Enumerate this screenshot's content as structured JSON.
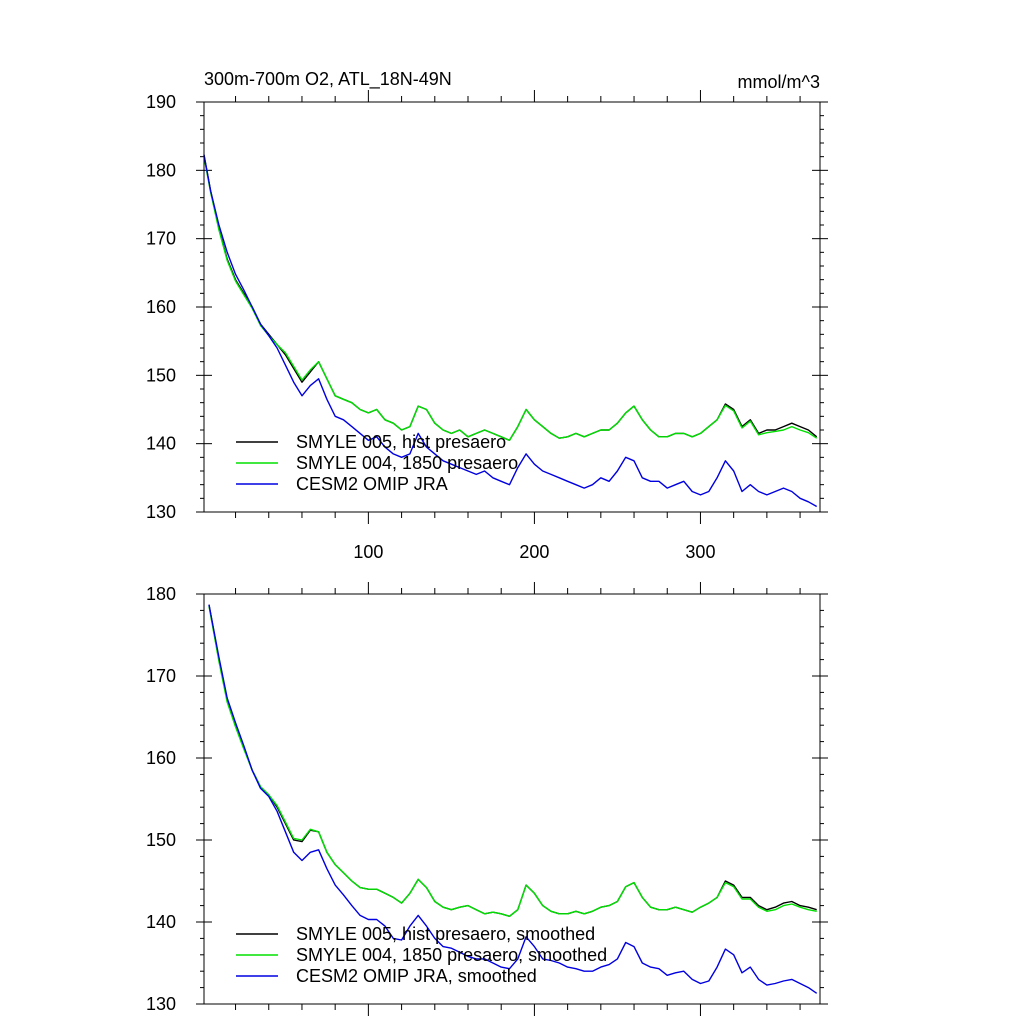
{
  "chart_data": [
    {
      "type": "line",
      "title": "300m-700m O2, ATL_18N-49N",
      "units": "mmol/m^3",
      "xlim": [
        1,
        372
      ],
      "ylim": [
        130,
        190
      ],
      "xticks": [
        100,
        200,
        300
      ],
      "xtick_labels": [
        "100",
        "200",
        "300"
      ],
      "yticks": [
        130,
        140,
        150,
        160,
        170,
        180,
        190
      ],
      "ytick_labels": [
        "130",
        "140",
        "150",
        "160",
        "170",
        "180",
        "190"
      ],
      "legend_position": "bottom-left",
      "series": [
        {
          "name": "SMYLE 005, hist presaero",
          "color": "#000000",
          "x": [
            1,
            5,
            10,
            15,
            20,
            25,
            30,
            35,
            40,
            45,
            50,
            55,
            60,
            65,
            70,
            75,
            80,
            85,
            90,
            95,
            100,
            105,
            110,
            115,
            120,
            125,
            130,
            135,
            140,
            145,
            150,
            155,
            160,
            165,
            170,
            175,
            180,
            185,
            190,
            195,
            200,
            205,
            210,
            215,
            220,
            225,
            230,
            235,
            240,
            245,
            250,
            255,
            260,
            265,
            270,
            275,
            280,
            285,
            290,
            295,
            300,
            305,
            310,
            315,
            320,
            325,
            330,
            335,
            340,
            345,
            350,
            355,
            360,
            365,
            370
          ],
          "values": [
            182.2,
            177.0,
            171.5,
            167.0,
            164.0,
            162.0,
            160.0,
            157.5,
            156.0,
            154.5,
            153.0,
            151.0,
            149.0,
            150.5,
            152.0,
            149.5,
            147.0,
            146.5,
            146.0,
            145.0,
            144.5,
            145.0,
            143.5,
            143.0,
            142.0,
            142.5,
            145.5,
            145.0,
            143.0,
            142.0,
            141.5,
            142.0,
            141.0,
            141.5,
            142.0,
            141.5,
            141.0,
            140.5,
            142.5,
            145.0,
            143.5,
            142.5,
            141.5,
            140.8,
            141.0,
            141.5,
            141.0,
            141.5,
            142.0,
            142.0,
            143.0,
            144.5,
            145.5,
            143.5,
            142.0,
            141.0,
            141.0,
            141.5,
            141.5,
            141.0,
            141.5,
            142.5,
            143.5,
            145.8,
            145.0,
            142.5,
            143.5,
            141.5,
            142.0,
            142.0,
            142.5,
            143.0,
            142.5,
            142.0,
            141.0
          ]
        },
        {
          "name": "SMYLE 004, 1850 presaero",
          "color": "#00e000",
          "x": [
            1,
            5,
            10,
            15,
            20,
            25,
            30,
            35,
            40,
            45,
            50,
            55,
            60,
            65,
            70,
            75,
            80,
            85,
            90,
            95,
            100,
            105,
            110,
            115,
            120,
            125,
            130,
            135,
            140,
            145,
            150,
            155,
            160,
            165,
            170,
            175,
            180,
            185,
            190,
            195,
            200,
            205,
            210,
            215,
            220,
            225,
            230,
            235,
            240,
            245,
            250,
            255,
            260,
            265,
            270,
            275,
            280,
            285,
            290,
            295,
            300,
            305,
            310,
            315,
            320,
            325,
            330,
            335,
            340,
            345,
            350,
            355,
            360,
            365,
            370
          ],
          "values": [
            182.0,
            176.8,
            171.3,
            166.8,
            163.8,
            161.8,
            159.8,
            157.3,
            155.8,
            154.5,
            153.3,
            151.3,
            149.3,
            150.8,
            152.0,
            149.5,
            147.0,
            146.5,
            146.0,
            145.0,
            144.5,
            145.0,
            143.5,
            143.0,
            142.0,
            142.5,
            145.5,
            145.0,
            143.0,
            142.0,
            141.5,
            142.0,
            141.0,
            141.5,
            142.0,
            141.5,
            141.0,
            140.5,
            142.5,
            145.0,
            143.5,
            142.5,
            141.5,
            140.8,
            141.0,
            141.5,
            141.0,
            141.5,
            142.0,
            142.0,
            143.0,
            144.5,
            145.5,
            143.5,
            142.0,
            141.0,
            141.0,
            141.5,
            141.5,
            141.0,
            141.5,
            142.5,
            143.5,
            145.6,
            144.8,
            142.3,
            143.3,
            141.3,
            141.6,
            141.8,
            142.0,
            142.5,
            142.0,
            141.6,
            140.8
          ]
        },
        {
          "name": "CESM2 OMIP JRA",
          "color": "#0000e0",
          "x": [
            1,
            5,
            10,
            15,
            20,
            25,
            30,
            35,
            40,
            45,
            50,
            55,
            60,
            65,
            70,
            75,
            80,
            85,
            90,
            95,
            100,
            105,
            110,
            115,
            120,
            125,
            130,
            135,
            140,
            145,
            150,
            155,
            160,
            165,
            170,
            175,
            180,
            185,
            190,
            195,
            200,
            205,
            210,
            215,
            220,
            225,
            230,
            235,
            240,
            245,
            250,
            255,
            260,
            265,
            270,
            275,
            280,
            285,
            290,
            295,
            300,
            305,
            310,
            315,
            320,
            325,
            330,
            335,
            340,
            345,
            350,
            355,
            360,
            365,
            370
          ],
          "values": [
            182.3,
            177.0,
            172.0,
            168.0,
            164.8,
            162.5,
            160.0,
            157.5,
            155.8,
            154.0,
            151.5,
            149.0,
            147.0,
            148.5,
            149.5,
            146.5,
            144.0,
            143.5,
            142.5,
            141.5,
            140.5,
            141.0,
            139.5,
            138.5,
            138.0,
            138.5,
            141.5,
            139.5,
            138.5,
            137.5,
            137.0,
            136.5,
            136.0,
            135.5,
            136.0,
            135.0,
            134.5,
            134.0,
            136.5,
            138.5,
            137.0,
            136.0,
            135.5,
            135.0,
            134.5,
            134.0,
            133.5,
            134.0,
            135.0,
            134.5,
            136.0,
            138.0,
            137.5,
            135.0,
            134.5,
            134.5,
            133.5,
            134.0,
            134.5,
            133.0,
            132.5,
            133.0,
            135.0,
            137.5,
            136.0,
            133.0,
            134.0,
            133.0,
            132.5,
            133.0,
            133.5,
            133.0,
            132.0,
            131.5,
            130.8
          ]
        }
      ]
    },
    {
      "type": "line",
      "title": "",
      "xlim": [
        1,
        372
      ],
      "ylim": [
        130,
        180
      ],
      "xticks": [
        100,
        200,
        300
      ],
      "yticks": [
        130,
        140,
        150,
        160,
        170,
        180
      ],
      "ytick_labels": [
        "130",
        "140",
        "150",
        "160",
        "170",
        "180"
      ],
      "legend_position": "bottom-left",
      "series": [
        {
          "name": "SMYLE 005, hist presaero, smoothed",
          "color": "#000000",
          "x": [
            4,
            10,
            15,
            20,
            25,
            30,
            35,
            40,
            45,
            50,
            55,
            60,
            65,
            70,
            75,
            80,
            85,
            90,
            95,
            100,
            105,
            110,
            115,
            120,
            125,
            130,
            135,
            140,
            145,
            150,
            155,
            160,
            165,
            170,
            175,
            180,
            185,
            190,
            195,
            200,
            205,
            210,
            215,
            220,
            225,
            230,
            235,
            240,
            245,
            250,
            255,
            260,
            265,
            270,
            275,
            280,
            285,
            290,
            295,
            300,
            305,
            310,
            315,
            320,
            325,
            330,
            335,
            340,
            345,
            350,
            355,
            360,
            365,
            370
          ],
          "values": [
            178.7,
            172.0,
            167.0,
            164.0,
            161.3,
            158.5,
            156.5,
            155.5,
            154.0,
            152.0,
            150.0,
            149.8,
            151.2,
            151.0,
            148.5,
            147.0,
            146.0,
            145.0,
            144.2,
            144.0,
            144.0,
            143.5,
            143.0,
            142.3,
            143.5,
            145.2,
            144.2,
            142.5,
            141.8,
            141.5,
            141.8,
            142.0,
            141.5,
            141.0,
            141.2,
            141.0,
            140.7,
            141.5,
            144.5,
            143.5,
            142.0,
            141.3,
            141.0,
            141.0,
            141.3,
            141.0,
            141.3,
            141.8,
            142.0,
            142.5,
            144.3,
            144.8,
            143.0,
            141.8,
            141.5,
            141.5,
            141.8,
            141.5,
            141.2,
            141.8,
            142.3,
            143.0,
            145.0,
            144.5,
            143.0,
            143.0,
            142.0,
            141.5,
            141.8,
            142.3,
            142.5,
            142.0,
            141.8,
            141.5
          ]
        },
        {
          "name": "SMYLE 004, 1850 presaero, smoothed",
          "color": "#00e000",
          "x": [
            4,
            10,
            15,
            20,
            25,
            30,
            35,
            40,
            45,
            50,
            55,
            60,
            65,
            70,
            75,
            80,
            85,
            90,
            95,
            100,
            105,
            110,
            115,
            120,
            125,
            130,
            135,
            140,
            145,
            150,
            155,
            160,
            165,
            170,
            175,
            180,
            185,
            190,
            195,
            200,
            205,
            210,
            215,
            220,
            225,
            230,
            235,
            240,
            245,
            250,
            255,
            260,
            265,
            270,
            275,
            280,
            285,
            290,
            295,
            300,
            305,
            310,
            315,
            320,
            325,
            330,
            335,
            340,
            345,
            350,
            355,
            360,
            365,
            370
          ],
          "values": [
            178.5,
            171.8,
            166.8,
            163.8,
            161.1,
            158.5,
            156.5,
            155.5,
            154.2,
            152.2,
            150.2,
            150.0,
            151.3,
            151.0,
            148.5,
            147.0,
            146.0,
            145.0,
            144.2,
            144.0,
            144.0,
            143.5,
            143.0,
            142.3,
            143.5,
            145.2,
            144.2,
            142.5,
            141.8,
            141.5,
            141.8,
            142.0,
            141.5,
            141.0,
            141.2,
            141.0,
            140.7,
            141.5,
            144.5,
            143.5,
            142.0,
            141.3,
            141.0,
            141.0,
            141.3,
            141.0,
            141.3,
            141.8,
            142.0,
            142.5,
            144.3,
            144.8,
            143.0,
            141.8,
            141.5,
            141.5,
            141.8,
            141.5,
            141.2,
            141.8,
            142.3,
            143.0,
            144.8,
            144.3,
            142.8,
            142.8,
            141.8,
            141.3,
            141.5,
            142.0,
            142.2,
            141.8,
            141.5,
            141.3
          ]
        },
        {
          "name": "CESM2 OMIP JRA, smoothed",
          "color": "#0000e0",
          "x": [
            4,
            10,
            15,
            20,
            25,
            30,
            35,
            40,
            45,
            50,
            55,
            60,
            65,
            70,
            75,
            80,
            85,
            90,
            95,
            100,
            105,
            110,
            115,
            120,
            125,
            130,
            135,
            140,
            145,
            150,
            155,
            160,
            165,
            170,
            175,
            180,
            185,
            190,
            195,
            200,
            205,
            210,
            215,
            220,
            225,
            230,
            235,
            240,
            245,
            250,
            255,
            260,
            265,
            270,
            275,
            280,
            285,
            290,
            295,
            300,
            305,
            310,
            315,
            320,
            325,
            330,
            335,
            340,
            345,
            350,
            355,
            360,
            365,
            370
          ],
          "values": [
            178.7,
            172.3,
            167.3,
            164.3,
            161.5,
            158.5,
            156.3,
            155.3,
            153.5,
            151.0,
            148.5,
            147.5,
            148.5,
            148.8,
            146.5,
            144.5,
            143.3,
            142.0,
            140.8,
            140.3,
            140.3,
            139.5,
            138.0,
            137.8,
            139.5,
            140.8,
            139.5,
            138.0,
            137.0,
            136.8,
            136.3,
            135.8,
            135.5,
            135.5,
            135.0,
            134.5,
            134.3,
            135.5,
            138.2,
            137.0,
            135.5,
            135.3,
            135.0,
            134.5,
            134.3,
            134.0,
            134.0,
            134.5,
            134.8,
            135.5,
            137.5,
            137.0,
            135.0,
            134.5,
            134.3,
            133.5,
            133.8,
            134.0,
            133.0,
            132.5,
            132.8,
            134.5,
            136.7,
            136.0,
            133.8,
            134.5,
            133.0,
            132.3,
            132.5,
            132.8,
            133.0,
            132.5,
            132.0,
            131.3
          ]
        }
      ]
    }
  ]
}
